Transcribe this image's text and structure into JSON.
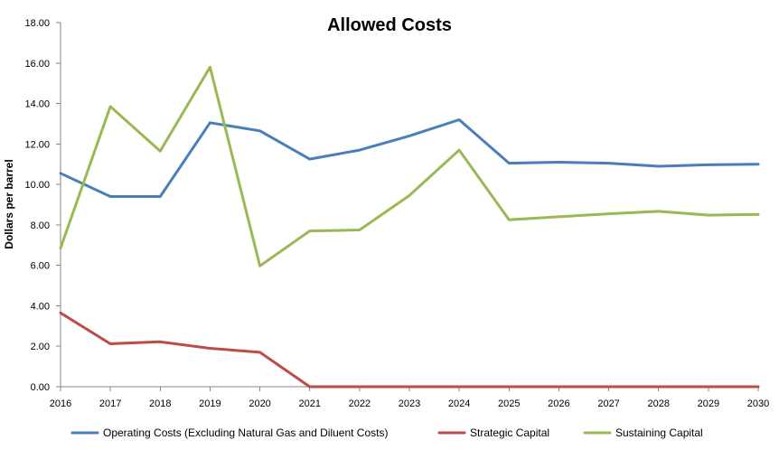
{
  "chart_data": {
    "type": "line",
    "title": "Allowed Costs",
    "xlabel": "",
    "ylabel": "Dollars per barrel",
    "x": [
      "2016",
      "2017",
      "2018",
      "2019",
      "2020",
      "2021",
      "2022",
      "2023",
      "2024",
      "2025",
      "2026",
      "2027",
      "2028",
      "2029",
      "2030"
    ],
    "ylim": [
      0,
      18
    ],
    "y_ticks": [
      "0.00",
      "2.00",
      "4.00",
      "6.00",
      "8.00",
      "10.00",
      "12.00",
      "14.00",
      "16.00",
      "18.00"
    ],
    "grid": false,
    "legend_position": "bottom",
    "series": [
      {
        "name": "Operating Costs (Excluding Natural Gas and Diluent Costs)",
        "color": "#4a7ebb",
        "values": [
          10.55,
          9.4,
          9.4,
          13.05,
          12.65,
          11.25,
          11.7,
          12.4,
          13.2,
          11.05,
          11.1,
          11.05,
          10.9,
          10.97,
          11.0
        ]
      },
      {
        "name": "Strategic Capital",
        "color": "#be4b48",
        "values": [
          3.65,
          2.12,
          2.22,
          1.9,
          1.7,
          0.0,
          0.0,
          0.0,
          0.0,
          0.0,
          0.0,
          0.0,
          0.0,
          0.0,
          0.0
        ]
      },
      {
        "name": "Sustaining Capital",
        "color": "#98b954",
        "values": [
          6.85,
          13.85,
          11.65,
          15.8,
          5.97,
          7.7,
          7.75,
          9.45,
          11.7,
          8.25,
          8.4,
          8.55,
          8.67,
          8.48,
          8.52
        ]
      }
    ]
  }
}
